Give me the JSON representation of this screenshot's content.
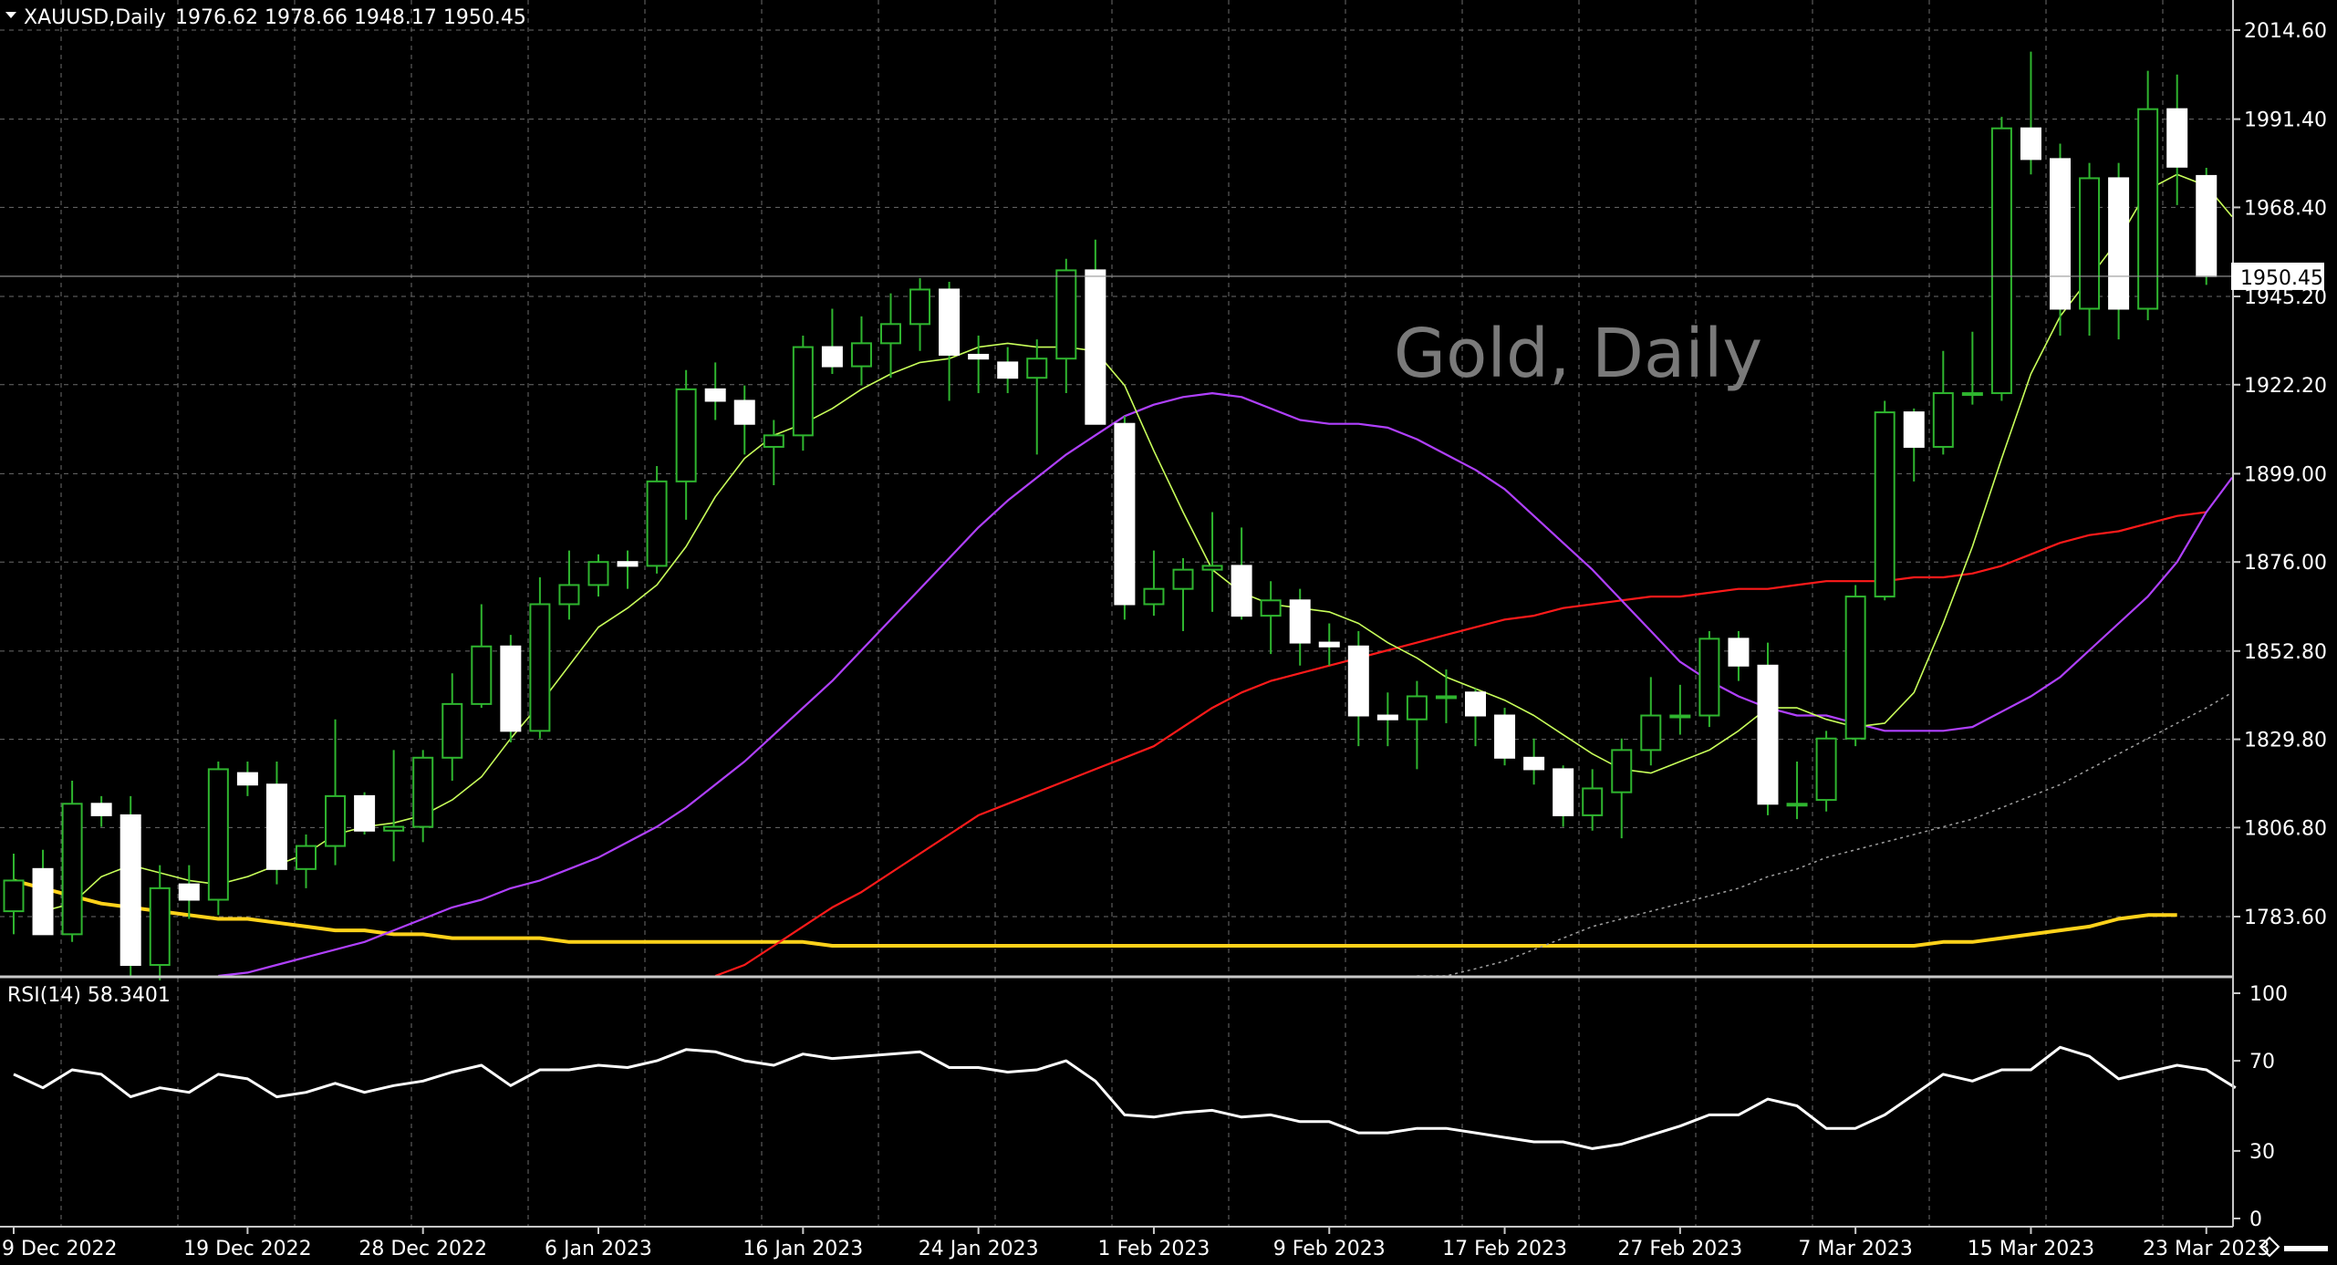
{
  "header": {
    "symbol": "XAUUSD,Daily",
    "ohlc": "1976.62 1978.66 1948.17 1950.45"
  },
  "watermark": "Gold, Daily",
  "rsi_label": "RSI(14) 58.3401",
  "current_price_label": "1950.45",
  "colors": {
    "background": "#000000",
    "grid": "#6b6b6b",
    "bull": "#2fb52f",
    "bear_fill": "#ffffff",
    "axis_text": "#ffffff",
    "ma_fast": "#c8ff5a",
    "ma_mid": "#b040ff",
    "ma_slow": "#ff1a1a",
    "ma_long": "#ffd21a",
    "ma_dotted": "#a0a0a0",
    "rsi": "#ffffff",
    "watermark": "#7a7a7a"
  },
  "chart_data": [
    {
      "type": "candlestick",
      "name": "XAUUSD Daily",
      "yaxis_ticks": [
        2014.6,
        1991.4,
        1968.4,
        1945.2,
        1922.2,
        1899.0,
        1876.0,
        1852.8,
        1829.8,
        1806.8,
        1783.6
      ],
      "ylim": [
        1764.0,
        2023.0
      ],
      "xaxis_labels": [
        {
          "index": 0,
          "label": "9 Dec 2022"
        },
        {
          "index": 8,
          "label": "19 Dec 2022"
        },
        {
          "index": 14,
          "label": "28 Dec 2022"
        },
        {
          "index": 20,
          "label": "6 Jan 2023"
        },
        {
          "index": 27,
          "label": "16 Jan 2023"
        },
        {
          "index": 33,
          "label": "24 Jan 2023"
        },
        {
          "index": 39,
          "label": "1 Feb 2023"
        },
        {
          "index": 45,
          "label": "9 Feb 2023"
        },
        {
          "index": 51,
          "label": "17 Feb 2023"
        },
        {
          "index": 57,
          "label": "27 Feb 2023"
        },
        {
          "index": 63,
          "label": "7 Mar 2023"
        },
        {
          "index": 69,
          "label": "15 Mar 2023"
        },
        {
          "index": 75,
          "label": "23 Mar 2023"
        }
      ],
      "current_price": 1950.45,
      "candles": [
        {
          "o": 1785.0,
          "h": 1800.0,
          "l": 1779.0,
          "c": 1793.0
        },
        {
          "o": 1796.0,
          "h": 1801.0,
          "l": 1779.0,
          "c": 1779.0
        },
        {
          "o": 1779.0,
          "h": 1819.0,
          "l": 1777.0,
          "c": 1813.0
        },
        {
          "o": 1813.0,
          "h": 1815.0,
          "l": 1807.0,
          "c": 1810.0
        },
        {
          "o": 1810.0,
          "h": 1815.0,
          "l": 1768.0,
          "c": 1771.0
        },
        {
          "o": 1771.0,
          "h": 1797.0,
          "l": 1767.0,
          "c": 1791.0
        },
        {
          "o": 1792.0,
          "h": 1797.0,
          "l": 1783.0,
          "c": 1788.0
        },
        {
          "o": 1788.0,
          "h": 1824.0,
          "l": 1784.0,
          "c": 1822.0
        },
        {
          "o": 1821.0,
          "h": 1824.0,
          "l": 1815.0,
          "c": 1818.0
        },
        {
          "o": 1818.0,
          "h": 1824.0,
          "l": 1792.0,
          "c": 1796.0
        },
        {
          "o": 1796.0,
          "h": 1805.0,
          "l": 1791.0,
          "c": 1802.0
        },
        {
          "o": 1802.0,
          "h": 1835.0,
          "l": 1797.0,
          "c": 1815.0
        },
        {
          "o": 1815.0,
          "h": 1816.0,
          "l": 1805.0,
          "c": 1806.0
        },
        {
          "o": 1806.0,
          "h": 1827.0,
          "l": 1798.0,
          "c": 1807.0
        },
        {
          "o": 1807.0,
          "h": 1827.0,
          "l": 1803.0,
          "c": 1825.0
        },
        {
          "o": 1825.0,
          "h": 1847.0,
          "l": 1819.0,
          "c": 1839.0
        },
        {
          "o": 1839.0,
          "h": 1865.0,
          "l": 1838.0,
          "c": 1854.0
        },
        {
          "o": 1854.0,
          "h": 1857.0,
          "l": 1829.0,
          "c": 1832.0
        },
        {
          "o": 1832.0,
          "h": 1872.0,
          "l": 1830.0,
          "c": 1865.0
        },
        {
          "o": 1865.0,
          "h": 1879.0,
          "l": 1861.0,
          "c": 1870.0
        },
        {
          "o": 1870.0,
          "h": 1878.0,
          "l": 1867.0,
          "c": 1876.0
        },
        {
          "o": 1876.0,
          "h": 1879.0,
          "l": 1869.0,
          "c": 1875.0
        },
        {
          "o": 1875.0,
          "h": 1901.0,
          "l": 1873.0,
          "c": 1897.0
        },
        {
          "o": 1897.0,
          "h": 1926.0,
          "l": 1887.0,
          "c": 1921.0
        },
        {
          "o": 1921.0,
          "h": 1928.0,
          "l": 1913.0,
          "c": 1918.0
        },
        {
          "o": 1918.0,
          "h": 1922.0,
          "l": 1904.0,
          "c": 1912.0
        },
        {
          "o": 1906.0,
          "h": 1913.0,
          "l": 1896.0,
          "c": 1909.0
        },
        {
          "o": 1909.0,
          "h": 1935.0,
          "l": 1905.0,
          "c": 1932.0
        },
        {
          "o": 1932.0,
          "h": 1942.0,
          "l": 1925.0,
          "c": 1927.0
        },
        {
          "o": 1927.0,
          "h": 1940.0,
          "l": 1922.0,
          "c": 1933.0
        },
        {
          "o": 1933.0,
          "h": 1946.0,
          "l": 1924.0,
          "c": 1938.0
        },
        {
          "o": 1938.0,
          "h": 1950.0,
          "l": 1931.0,
          "c": 1947.0
        },
        {
          "o": 1947.0,
          "h": 1949.0,
          "l": 1918.0,
          "c": 1930.0
        },
        {
          "o": 1930.0,
          "h": 1935.0,
          "l": 1920.0,
          "c": 1929.0
        },
        {
          "o": 1928.0,
          "h": 1932.0,
          "l": 1920.0,
          "c": 1924.0
        },
        {
          "o": 1924.0,
          "h": 1934.0,
          "l": 1904.0,
          "c": 1929.0
        },
        {
          "o": 1929.0,
          "h": 1955.0,
          "l": 1920.0,
          "c": 1952.0
        },
        {
          "o": 1952.0,
          "h": 1960.0,
          "l": 1912.0,
          "c": 1912.0
        },
        {
          "o": 1912.0,
          "h": 1914.0,
          "l": 1861.0,
          "c": 1865.0
        },
        {
          "o": 1865.0,
          "h": 1879.0,
          "l": 1862.0,
          "c": 1869.0
        },
        {
          "o": 1869.0,
          "h": 1877.0,
          "l": 1858.0,
          "c": 1874.0
        },
        {
          "o": 1874.0,
          "h": 1889.0,
          "l": 1863.0,
          "c": 1875.0
        },
        {
          "o": 1875.0,
          "h": 1885.0,
          "l": 1861.0,
          "c": 1862.0
        },
        {
          "o": 1862.0,
          "h": 1871.0,
          "l": 1852.0,
          "c": 1866.0
        },
        {
          "o": 1866.0,
          "h": 1869.0,
          "l": 1849.0,
          "c": 1855.0
        },
        {
          "o": 1855.0,
          "h": 1860.0,
          "l": 1849.0,
          "c": 1854.0
        },
        {
          "o": 1854.0,
          "h": 1858.0,
          "l": 1828.0,
          "c": 1836.0
        },
        {
          "o": 1836.0,
          "h": 1842.0,
          "l": 1828.0,
          "c": 1835.0
        },
        {
          "o": 1835.0,
          "h": 1845.0,
          "l": 1822.0,
          "c": 1841.0
        },
        {
          "o": 1841.0,
          "h": 1848.0,
          "l": 1834.0,
          "c": 1841.0
        },
        {
          "o": 1842.0,
          "h": 1843.0,
          "l": 1828.0,
          "c": 1836.0
        },
        {
          "o": 1836.0,
          "h": 1838.0,
          "l": 1823.0,
          "c": 1825.0
        },
        {
          "o": 1825.0,
          "h": 1830.0,
          "l": 1818.0,
          "c": 1822.0
        },
        {
          "o": 1822.0,
          "h": 1823.0,
          "l": 1807.0,
          "c": 1810.0
        },
        {
          "o": 1810.0,
          "h": 1822.0,
          "l": 1806.0,
          "c": 1817.0
        },
        {
          "o": 1816.0,
          "h": 1830.0,
          "l": 1804.0,
          "c": 1827.0
        },
        {
          "o": 1827.0,
          "h": 1846.0,
          "l": 1823.0,
          "c": 1836.0
        },
        {
          "o": 1836.0,
          "h": 1844.0,
          "l": 1831.0,
          "c": 1836.0
        },
        {
          "o": 1836.0,
          "h": 1858.0,
          "l": 1833.0,
          "c": 1856.0
        },
        {
          "o": 1856.0,
          "h": 1858.0,
          "l": 1845.0,
          "c": 1849.0
        },
        {
          "o": 1849.0,
          "h": 1855.0,
          "l": 1810.0,
          "c": 1813.0
        },
        {
          "o": 1813.0,
          "h": 1824.0,
          "l": 1809.0,
          "c": 1813.0
        },
        {
          "o": 1814.0,
          "h": 1832.0,
          "l": 1811.0,
          "c": 1830.0
        },
        {
          "o": 1830.0,
          "h": 1870.0,
          "l": 1828.0,
          "c": 1867.0
        },
        {
          "o": 1867.0,
          "h": 1918.0,
          "l": 1866.0,
          "c": 1915.0
        },
        {
          "o": 1915.0,
          "h": 1916.0,
          "l": 1897.0,
          "c": 1906.0
        },
        {
          "o": 1906.0,
          "h": 1931.0,
          "l": 1904.0,
          "c": 1920.0
        },
        {
          "o": 1920.0,
          "h": 1936.0,
          "l": 1917.0,
          "c": 1920.0
        },
        {
          "o": 1920.0,
          "h": 1992.0,
          "l": 1918.0,
          "c": 1989.0
        },
        {
          "o": 1989.0,
          "h": 2009.0,
          "l": 1977.0,
          "c": 1981.0
        },
        {
          "o": 1981.0,
          "h": 1985.0,
          "l": 1935.0,
          "c": 1942.0
        },
        {
          "o": 1942.0,
          "h": 1980.0,
          "l": 1935.0,
          "c": 1976.0
        },
        {
          "o": 1976.0,
          "h": 1980.0,
          "l": 1934.0,
          "c": 1942.0
        },
        {
          "o": 1942.0,
          "h": 2004.0,
          "l": 1939.0,
          "c": 1994.0
        },
        {
          "o": 1994.0,
          "h": 2003.0,
          "l": 1969.0,
          "c": 1979.0
        },
        {
          "o": 1976.6,
          "h": 1978.7,
          "l": 1948.2,
          "c": 1950.5
        }
      ],
      "indicators": [
        {
          "kind": "ma_fast",
          "values": [
            1785,
            1787,
            1794,
            1797,
            1795,
            1793,
            1792,
            1794,
            1797,
            1800,
            1805,
            1807,
            1808,
            1810,
            1814,
            1820,
            1830,
            1839,
            1849,
            1859,
            1864,
            1870,
            1880,
            1893,
            1903,
            1909,
            1912,
            1916,
            1921,
            1925,
            1928,
            1929,
            1932,
            1933,
            1932,
            1932,
            1931,
            1922,
            1905,
            1889,
            1874,
            1868,
            1865,
            1864,
            1863,
            1860,
            1855,
            1851,
            1846,
            1843,
            1840,
            1836,
            1831,
            1826,
            1822,
            1821,
            1824,
            1827,
            1832,
            1838,
            1838,
            1835,
            1833,
            1834,
            1842,
            1860,
            1880,
            1903,
            1925,
            1940,
            1950,
            1960,
            1973,
            1977,
            1974,
            1966
          ]
        },
        {
          "kind": "ma_mid",
          "values": [
            1767,
            1769,
            1771,
            1773,
            1775,
            1777,
            1780,
            1783,
            1786,
            1788,
            1791,
            1793,
            1796,
            1799,
            1803,
            1807,
            1812,
            1818,
            1824,
            1831,
            1838,
            1845,
            1853,
            1861,
            1869,
            1877,
            1885,
            1892,
            1898,
            1904,
            1909,
            1914,
            1917,
            1919,
            1920,
            1919,
            1916,
            1913,
            1912,
            1912,
            1911,
            1908,
            1904,
            1900,
            1895,
            1888,
            1881,
            1874,
            1866,
            1858,
            1850,
            1845,
            1841,
            1838,
            1836,
            1836,
            1834,
            1832,
            1832,
            1832,
            1833,
            1837,
            1841,
            1846,
            1853,
            1860,
            1867,
            1876,
            1889,
            1898
          ]
        },
        {
          "kind": "ma_slow",
          "values": [
            1767,
            1771,
            1776,
            1781,
            1786,
            1790,
            1795,
            1800,
            1805,
            1810,
            1813,
            1816,
            1819,
            1822,
            1825,
            1828,
            1833,
            1838,
            1842,
            1845,
            1847,
            1849,
            1851,
            1853,
            1855,
            1857,
            1859,
            1861,
            1862,
            1864,
            1865,
            1866,
            1867,
            1867,
            1868,
            1869,
            1869,
            1870,
            1871,
            1871,
            1871,
            1872,
            1872,
            1873,
            1875,
            1878,
            1881,
            1883,
            1884,
            1886,
            1888,
            1889
          ]
        },
        {
          "kind": "ma_long",
          "values": [
            1793,
            1791,
            1789,
            1787,
            1786,
            1785,
            1784,
            1783,
            1783,
            1782,
            1781,
            1780,
            1780,
            1779,
            1779,
            1778,
            1778,
            1778,
            1778,
            1777,
            1777,
            1777,
            1777,
            1777,
            1777,
            1777,
            1777,
            1777,
            1776,
            1776,
            1776,
            1776,
            1776,
            1776,
            1776,
            1776,
            1776,
            1776,
            1776,
            1776,
            1776,
            1776,
            1776,
            1776,
            1776,
            1776,
            1776,
            1776,
            1776,
            1776,
            1776,
            1776,
            1776,
            1776,
            1776,
            1776,
            1776,
            1776,
            1776,
            1776,
            1776,
            1776,
            1776,
            1776,
            1776,
            1776,
            1777,
            1777,
            1778,
            1779,
            1780,
            1781,
            1783,
            1784,
            1784
          ]
        },
        {
          "kind": "ma_dotted",
          "values": [
            1764,
            1767,
            1770,
            1772,
            1775,
            1778,
            1781,
            1783,
            1785,
            1787,
            1789,
            1791,
            1794,
            1796,
            1799,
            1801,
            1803,
            1805,
            1807,
            1809,
            1812,
            1815,
            1818,
            1822,
            1826,
            1830,
            1834,
            1838,
            1842
          ]
        }
      ]
    },
    {
      "type": "line",
      "name": "RSI(14) 58.3401",
      "yaxis_ticks": [
        100,
        70,
        30,
        0
      ],
      "ylim": [
        0,
        100
      ],
      "values": [
        64,
        58,
        66,
        64,
        54,
        58,
        56,
        64,
        62,
        54,
        56,
        60,
        56,
        59,
        61,
        65,
        68,
        59,
        66,
        66,
        68,
        67,
        70,
        75,
        74,
        70,
        68,
        73,
        71,
        72,
        73,
        74,
        67,
        67,
        65,
        66,
        70,
        61,
        46,
        45,
        47,
        48,
        45,
        46,
        43,
        43,
        38,
        38,
        40,
        40,
        38,
        36,
        34,
        34,
        31,
        33,
        37,
        41,
        46,
        46,
        53,
        50,
        40,
        40,
        46,
        55,
        64,
        61,
        66,
        66,
        76,
        72,
        62,
        65,
        68,
        66,
        58
      ]
    }
  ]
}
